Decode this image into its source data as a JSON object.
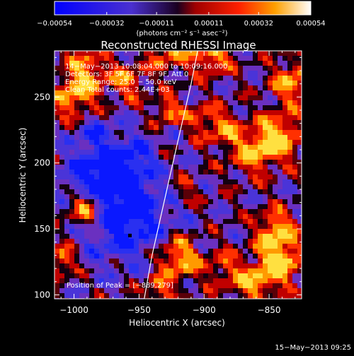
{
  "chart_data": {
    "type": "heatmap",
    "title": "Reconstructed RHESSI Image",
    "xlabel": "Heliocentric X (arcsec)",
    "ylabel": "Heliocentric Y (arcsec)",
    "xlim": [
      -1015,
      -825
    ],
    "ylim": [
      97,
      285
    ],
    "xticks": [
      -1000,
      -950,
      -900,
      -850
    ],
    "xtick_labels": [
      "−1000",
      "−950",
      "−900",
      "−850"
    ],
    "yticks": [
      100,
      150,
      200,
      250
    ],
    "ytick_labels": [
      "100",
      "150",
      "200",
      "250"
    ],
    "grid": false,
    "colorbar": {
      "range": [
        -0.00054,
        0.00054
      ],
      "tick_values": [
        -0.00054,
        -0.00032,
        -0.00011,
        0.00011,
        0.00032,
        0.00054
      ],
      "tick_labels": [
        "−0.00054",
        "−0.00032",
        "−0.00011",
        "0.00011",
        "0.00032",
        "0.00054"
      ],
      "unit_label": "(photons cm⁻² s⁻¹ asec⁻²)",
      "colors": [
        "#0000ff",
        "#5030c0",
        "#200020",
        "#ff0000",
        "#ffa000",
        "#ffffff"
      ]
    },
    "annotations": [
      "14−May−2013 10:08:04.000 to 10:09:16.000",
      "Detectors: 3F 5F 6F 7F 8F 9F, Att 0",
      "Energy Range: 25.0 − 50.0 keV",
      "Clean     Total counts: 2.44E+03"
    ],
    "peak_label": "Position of Peak = [−889,279]",
    "peak": {
      "x": -889,
      "y": 279
    },
    "limb": [
      [
        -946,
        97
      ],
      [
        -940,
        130
      ],
      [
        -932,
        165
      ],
      [
        -924,
        200
      ],
      [
        -917,
        230
      ],
      [
        -910,
        260
      ],
      [
        -905,
        285
      ]
    ],
    "hotspots": [
      [
        -990,
        165,
        11,
        1.0
      ],
      [
        -1010,
        126,
        8,
        0.7
      ],
      [
        -1000,
        250,
        12,
        0.8
      ],
      [
        -990,
        272,
        10,
        0.7
      ],
      [
        -960,
        262,
        10,
        0.6
      ],
      [
        -925,
        285,
        12,
        0.6
      ],
      [
        -893,
        282,
        10,
        0.8
      ],
      [
        -905,
        234,
        8,
        0.5
      ],
      [
        -885,
        226,
        10,
        0.6
      ],
      [
        -862,
        208,
        12,
        0.7
      ],
      [
        -842,
        220,
        12,
        0.9
      ],
      [
        -832,
        262,
        12,
        0.7
      ],
      [
        -845,
        150,
        10,
        0.8
      ],
      [
        -842,
        125,
        12,
        1.0
      ],
      [
        -862,
        108,
        10,
        0.7
      ],
      [
        -885,
        120,
        10,
        0.5
      ],
      [
        -920,
        128,
        11,
        0.9
      ],
      [
        -935,
        103,
        8,
        0.6
      ],
      [
        -928,
        240,
        7,
        0.7
      ],
      [
        -915,
        180,
        8,
        0.4
      ]
    ],
    "coldspots": [
      [
        -962,
        162,
        24,
        1.0
      ],
      [
        -975,
        188,
        14,
        0.7
      ],
      [
        -955,
        205,
        12,
        0.5
      ],
      [
        -985,
        220,
        12,
        0.5
      ],
      [
        -1000,
        190,
        10,
        0.4
      ]
    ],
    "peak_pixel_value_mark": {
      "x": -957,
      "y": 145
    }
  },
  "footer": {
    "timestamp": "15−May−2013 09:25"
  }
}
